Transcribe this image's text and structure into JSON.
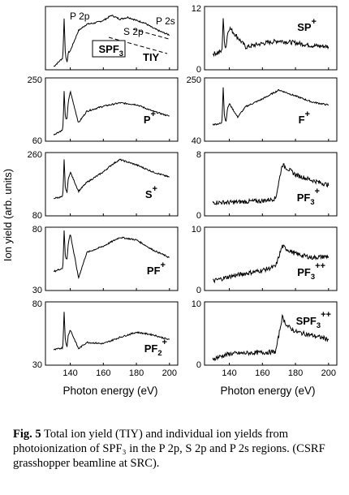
{
  "figure": {
    "y_axis_label": "Ion yield (arb. units)",
    "x_axis_label": "Photon energy (eV)"
  },
  "caption": {
    "label": "Fig. 5",
    "text": " Total ion yield (TIY) and individual ion yields from photoionization of SPF₃ in the P 2p, S 2p and P 2s regions. (CSRF grasshopper beamline at SRC)."
  },
  "chart_data": [
    {
      "type": "line",
      "panel": "TIY",
      "x_range": [
        125,
        205
      ],
      "ylim": null,
      "y_ticks": [],
      "x_ticks": [],
      "labels": [
        "SPF3",
        "TIY"
      ],
      "annotations": [
        "P 2p",
        "S 2p",
        "P 2s"
      ],
      "series": [
        {
          "name": "TIY",
          "shape": "tiy",
          "x": [
            130,
            136,
            140,
            145,
            150,
            155,
            160,
            165,
            170,
            175,
            180,
            185,
            190,
            195,
            200
          ],
          "values": [
            0.05,
            0.2,
            0.3,
            0.62,
            0.72,
            0.74,
            0.78,
            0.86,
            0.8,
            0.83,
            0.78,
            0.74,
            0.66,
            0.6,
            0.55
          ]
        }
      ]
    },
    {
      "type": "line",
      "panel": "SP+",
      "x_range": [
        125,
        205
      ],
      "ylim": [
        0,
        12
      ],
      "y_ticks": [
        "12",
        "0"
      ],
      "x_ticks": [],
      "labels": [
        "SP+"
      ],
      "series": [
        {
          "name": "SP+",
          "shape": "sp",
          "x": [
            130,
            136,
            140,
            150,
            160,
            170,
            180,
            190,
            200
          ],
          "values": [
            3.0,
            3.5,
            8.0,
            4.3,
            5.0,
            5.5,
            5.1,
            4.6,
            4.4
          ]
        }
      ]
    },
    {
      "type": "line",
      "panel": "P+",
      "x_range": [
        125,
        205
      ],
      "ylim": [
        60,
        250
      ],
      "y_ticks": [
        "250",
        "60"
      ],
      "x_ticks": [],
      "labels": [
        "P+"
      ],
      "series": [
        {
          "name": "P+",
          "shape": "pplus",
          "x": [
            130,
            136,
            140,
            145,
            150,
            160,
            170,
            180,
            190,
            200
          ],
          "values": [
            80,
            95,
            210,
            115,
            150,
            165,
            175,
            170,
            150,
            135
          ]
        }
      ]
    },
    {
      "type": "line",
      "panel": "F+",
      "x_range": [
        125,
        205
      ],
      "ylim": [
        40,
        250
      ],
      "y_ticks": [
        "250",
        "40"
      ],
      "x_ticks": [],
      "labels": [
        "F+"
      ],
      "series": [
        {
          "name": "F+",
          "shape": "fplus",
          "x": [
            130,
            136,
            140,
            145,
            150,
            160,
            170,
            180,
            190,
            200
          ],
          "values": [
            95,
            100,
            165,
            120,
            155,
            180,
            210,
            190,
            170,
            160
          ]
        }
      ]
    },
    {
      "type": "line",
      "panel": "S+",
      "x_range": [
        125,
        205
      ],
      "ylim": [
        80,
        260
      ],
      "y_ticks": [
        "260",
        "80"
      ],
      "x_ticks": [],
      "labels": [
        "S+"
      ],
      "series": [
        {
          "name": "S+",
          "shape": "splus",
          "x": [
            130,
            136,
            140,
            145,
            150,
            160,
            165,
            170,
            180,
            190,
            200
          ],
          "values": [
            130,
            135,
            205,
            150,
            175,
            205,
            225,
            240,
            225,
            205,
            190
          ]
        }
      ]
    },
    {
      "type": "line",
      "panel": "PF3+",
      "x_range": [
        125,
        205
      ],
      "ylim": [
        0,
        8
      ],
      "y_ticks": [
        "8",
        "0"
      ],
      "x_ticks": [],
      "labels": [
        "PF3+"
      ],
      "series": [
        {
          "name": "PF3+",
          "shape": "step",
          "x": [
            130,
            140,
            150,
            160,
            168,
            172,
            175,
            180,
            190,
            200
          ],
          "values": [
            1.7,
            1.7,
            1.8,
            1.9,
            2.2,
            6.5,
            6.0,
            5.2,
            4.5,
            3.9
          ]
        }
      ]
    },
    {
      "type": "line",
      "panel": "PF+",
      "x_range": [
        125,
        205
      ],
      "ylim": [
        30,
        80
      ],
      "y_ticks": [
        "80",
        "30"
      ],
      "x_ticks": [],
      "labels": [
        "PF+"
      ],
      "series": [
        {
          "name": "PF+",
          "shape": "pfplus",
          "x": [
            130,
            136,
            140,
            145,
            150,
            160,
            170,
            180,
            190,
            200
          ],
          "values": [
            45,
            48,
            75,
            40,
            60,
            65,
            72,
            70,
            62,
            56
          ]
        }
      ]
    },
    {
      "type": "line",
      "panel": "PF3++",
      "x_range": [
        125,
        205
      ],
      "ylim": [
        0,
        10
      ],
      "y_ticks": [
        "10",
        "0"
      ],
      "x_ticks": [],
      "labels": [
        "PF3++"
      ],
      "series": [
        {
          "name": "PF3++",
          "shape": "step",
          "x": [
            130,
            140,
            150,
            160,
            168,
            172,
            175,
            180,
            190,
            200
          ],
          "values": [
            1.5,
            2.2,
            2.7,
            3.2,
            3.8,
            7.0,
            6.5,
            5.8,
            5.2,
            5.4
          ]
        }
      ]
    },
    {
      "type": "line",
      "panel": "PF2+",
      "x_range": [
        125,
        205
      ],
      "ylim": [
        30,
        80
      ],
      "y_ticks": [
        "80",
        "30"
      ],
      "x_ticks": [
        "140",
        "160",
        "180",
        "200"
      ],
      "labels": [
        "PF2+"
      ],
      "series": [
        {
          "name": "PF2+",
          "shape": "pf2",
          "x": [
            130,
            136,
            140,
            145,
            150,
            160,
            170,
            180,
            190,
            200
          ],
          "values": [
            42,
            44,
            58,
            43,
            48,
            47,
            52,
            56,
            54,
            50
          ]
        }
      ]
    },
    {
      "type": "line",
      "panel": "SPF3++",
      "x_range": [
        125,
        205
      ],
      "ylim": [
        0,
        10
      ],
      "y_ticks": [
        "10",
        "0"
      ],
      "x_ticks": [
        "140",
        "160",
        "180",
        "200"
      ],
      "labels": [
        "SPF3++"
      ],
      "series": [
        {
          "name": "SPF3++",
          "shape": "step",
          "x": [
            130,
            140,
            150,
            160,
            168,
            172,
            175,
            180,
            190,
            200
          ],
          "values": [
            1.0,
            1.8,
            1.9,
            2.0,
            2.1,
            7.6,
            6.2,
            5.3,
            4.7,
            4.1
          ]
        }
      ]
    }
  ]
}
